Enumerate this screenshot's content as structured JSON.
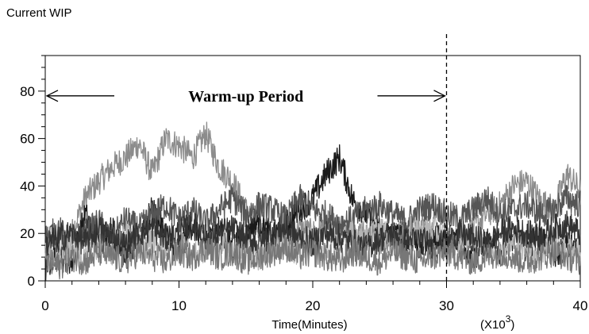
{
  "chart_data": {
    "type": "line",
    "title": "",
    "ylabel": "Current WIP",
    "xlabel": "Time(Minutes)",
    "x_multiplier_label": "(X10",
    "x_multiplier_exp": "3",
    "x_multiplier_close": ")",
    "xlim": [
      0,
      40
    ],
    "ylim": [
      0,
      95
    ],
    "x_ticks": [
      0,
      10,
      20,
      30,
      40
    ],
    "y_ticks": [
      0,
      20,
      40,
      60,
      80
    ],
    "grid": false,
    "annotation": {
      "text": "Warm-up Period",
      "x_start": 0,
      "x_end": 30,
      "y": 78
    },
    "vline_x": 30,
    "series": [
      {
        "color": "#8c8c8c",
        "points": [
          [
            0,
            10
          ],
          [
            1,
            14
          ],
          [
            2,
            20
          ],
          [
            3,
            35
          ],
          [
            4,
            42
          ],
          [
            5,
            48
          ],
          [
            6,
            52
          ],
          [
            7,
            58
          ],
          [
            8,
            45
          ],
          [
            9,
            60
          ],
          [
            10,
            57
          ],
          [
            11,
            52
          ],
          [
            12,
            62
          ],
          [
            13,
            48
          ],
          [
            14,
            42
          ],
          [
            15,
            30
          ],
          [
            16,
            22
          ],
          [
            17,
            18
          ],
          [
            18,
            20
          ],
          [
            19,
            22
          ],
          [
            20,
            20
          ],
          [
            21,
            24
          ],
          [
            22,
            22
          ],
          [
            23,
            18
          ],
          [
            24,
            20
          ],
          [
            25,
            17
          ],
          [
            26,
            18
          ],
          [
            27,
            22
          ],
          [
            28,
            25
          ],
          [
            29,
            20
          ],
          [
            30,
            15
          ],
          [
            31,
            18
          ],
          [
            32,
            22
          ],
          [
            33,
            28
          ],
          [
            34,
            32
          ],
          [
            35,
            40
          ],
          [
            36,
            42
          ],
          [
            37,
            34
          ],
          [
            38,
            30
          ],
          [
            39,
            45
          ],
          [
            40,
            38
          ]
        ]
      },
      {
        "color": "#1a1a1a",
        "points": [
          [
            0,
            5
          ],
          [
            1,
            12
          ],
          [
            2,
            8
          ],
          [
            3,
            28
          ],
          [
            4,
            15
          ],
          [
            5,
            22
          ],
          [
            6,
            10
          ],
          [
            7,
            18
          ],
          [
            8,
            30
          ],
          [
            9,
            20
          ],
          [
            10,
            12
          ],
          [
            11,
            24
          ],
          [
            12,
            16
          ],
          [
            13,
            22
          ],
          [
            14,
            14
          ],
          [
            15,
            20
          ],
          [
            16,
            26
          ],
          [
            17,
            18
          ],
          [
            18,
            24
          ],
          [
            19,
            30
          ],
          [
            20,
            35
          ],
          [
            21,
            45
          ],
          [
            22,
            52
          ],
          [
            23,
            34
          ],
          [
            24,
            28
          ],
          [
            25,
            22
          ],
          [
            26,
            18
          ],
          [
            27,
            20
          ],
          [
            28,
            14
          ],
          [
            29,
            18
          ],
          [
            30,
            20
          ],
          [
            31,
            16
          ],
          [
            32,
            10
          ],
          [
            33,
            15
          ],
          [
            34,
            12
          ],
          [
            35,
            18
          ],
          [
            36,
            14
          ],
          [
            37,
            20
          ],
          [
            38,
            10
          ],
          [
            39,
            15
          ],
          [
            40,
            12
          ]
        ]
      },
      {
        "color": "#555555",
        "points": [
          [
            0,
            18
          ],
          [
            1,
            22
          ],
          [
            2,
            15
          ],
          [
            3,
            20
          ],
          [
            4,
            25
          ],
          [
            5,
            18
          ],
          [
            6,
            26
          ],
          [
            7,
            22
          ],
          [
            8,
            28
          ],
          [
            9,
            32
          ],
          [
            10,
            26
          ],
          [
            11,
            30
          ],
          [
            12,
            24
          ],
          [
            13,
            30
          ],
          [
            14,
            35
          ],
          [
            15,
            28
          ],
          [
            16,
            32
          ],
          [
            17,
            30
          ],
          [
            18,
            26
          ],
          [
            19,
            35
          ],
          [
            20,
            30
          ],
          [
            21,
            28
          ],
          [
            22,
            24
          ],
          [
            23,
            26
          ],
          [
            24,
            30
          ],
          [
            25,
            32
          ],
          [
            26,
            28
          ],
          [
            27,
            25
          ],
          [
            28,
            30
          ],
          [
            29,
            32
          ],
          [
            30,
            28
          ],
          [
            31,
            26
          ],
          [
            32,
            30
          ],
          [
            33,
            35
          ],
          [
            34,
            28
          ],
          [
            35,
            30
          ],
          [
            36,
            32
          ],
          [
            37,
            28
          ],
          [
            38,
            30
          ],
          [
            39,
            35
          ],
          [
            40,
            32
          ]
        ]
      },
      {
        "color": "#b5b5b5",
        "points": [
          [
            0,
            12
          ],
          [
            1,
            8
          ],
          [
            2,
            14
          ],
          [
            3,
            10
          ],
          [
            4,
            16
          ],
          [
            5,
            12
          ],
          [
            6,
            20
          ],
          [
            7,
            14
          ],
          [
            8,
            18
          ],
          [
            9,
            12
          ],
          [
            10,
            16
          ],
          [
            11,
            10
          ],
          [
            12,
            14
          ],
          [
            13,
            18
          ],
          [
            14,
            12
          ],
          [
            15,
            16
          ],
          [
            16,
            10
          ],
          [
            17,
            14
          ],
          [
            18,
            16
          ],
          [
            19,
            12
          ],
          [
            20,
            18
          ],
          [
            21,
            14
          ],
          [
            22,
            16
          ],
          [
            23,
            20
          ],
          [
            24,
            18
          ],
          [
            25,
            22
          ],
          [
            26,
            16
          ],
          [
            27,
            18
          ],
          [
            28,
            20
          ],
          [
            29,
            22
          ],
          [
            30,
            18
          ],
          [
            31,
            16
          ],
          [
            32,
            20
          ],
          [
            33,
            14
          ],
          [
            34,
            12
          ],
          [
            35,
            16
          ],
          [
            36,
            14
          ],
          [
            37,
            12
          ],
          [
            38,
            16
          ],
          [
            39,
            14
          ],
          [
            40,
            12
          ]
        ]
      },
      {
        "color": "#333333",
        "points": [
          [
            0,
            15
          ],
          [
            1,
            18
          ],
          [
            2,
            20
          ],
          [
            3,
            16
          ],
          [
            4,
            22
          ],
          [
            5,
            18
          ],
          [
            6,
            15
          ],
          [
            7,
            20
          ],
          [
            8,
            22
          ],
          [
            9,
            18
          ],
          [
            10,
            20
          ],
          [
            11,
            24
          ],
          [
            12,
            18
          ],
          [
            13,
            20
          ],
          [
            14,
            22
          ],
          [
            15,
            18
          ],
          [
            16,
            16
          ],
          [
            17,
            20
          ],
          [
            18,
            22
          ],
          [
            19,
            18
          ],
          [
            20,
            16
          ],
          [
            21,
            20
          ],
          [
            22,
            18
          ],
          [
            23,
            16
          ],
          [
            24,
            14
          ],
          [
            25,
            18
          ],
          [
            26,
            20
          ],
          [
            27,
            16
          ],
          [
            28,
            18
          ],
          [
            29,
            14
          ],
          [
            30,
            16
          ],
          [
            31,
            20
          ],
          [
            32,
            18
          ],
          [
            33,
            16
          ],
          [
            34,
            20
          ],
          [
            35,
            22
          ],
          [
            36,
            20
          ],
          [
            37,
            18
          ],
          [
            38,
            22
          ],
          [
            39,
            24
          ],
          [
            40,
            20
          ]
        ]
      },
      {
        "color": "#777777",
        "points": [
          [
            0,
            8
          ],
          [
            1,
            6
          ],
          [
            2,
            10
          ],
          [
            3,
            8
          ],
          [
            4,
            12
          ],
          [
            5,
            10
          ],
          [
            6,
            8
          ],
          [
            7,
            12
          ],
          [
            8,
            10
          ],
          [
            9,
            8
          ],
          [
            10,
            12
          ],
          [
            11,
            10
          ],
          [
            12,
            14
          ],
          [
            13,
            10
          ],
          [
            14,
            12
          ],
          [
            15,
            8
          ],
          [
            16,
            10
          ],
          [
            17,
            12
          ],
          [
            18,
            14
          ],
          [
            19,
            10
          ],
          [
            20,
            12
          ],
          [
            21,
            10
          ],
          [
            22,
            8
          ],
          [
            23,
            12
          ],
          [
            24,
            10
          ],
          [
            25,
            8
          ],
          [
            26,
            12
          ],
          [
            27,
            10
          ],
          [
            28,
            8
          ],
          [
            29,
            10
          ],
          [
            30,
            12
          ],
          [
            31,
            10
          ],
          [
            32,
            8
          ],
          [
            33,
            10
          ],
          [
            34,
            12
          ],
          [
            35,
            10
          ],
          [
            36,
            8
          ],
          [
            37,
            10
          ],
          [
            38,
            12
          ],
          [
            39,
            10
          ],
          [
            40,
            8
          ]
        ]
      }
    ]
  }
}
